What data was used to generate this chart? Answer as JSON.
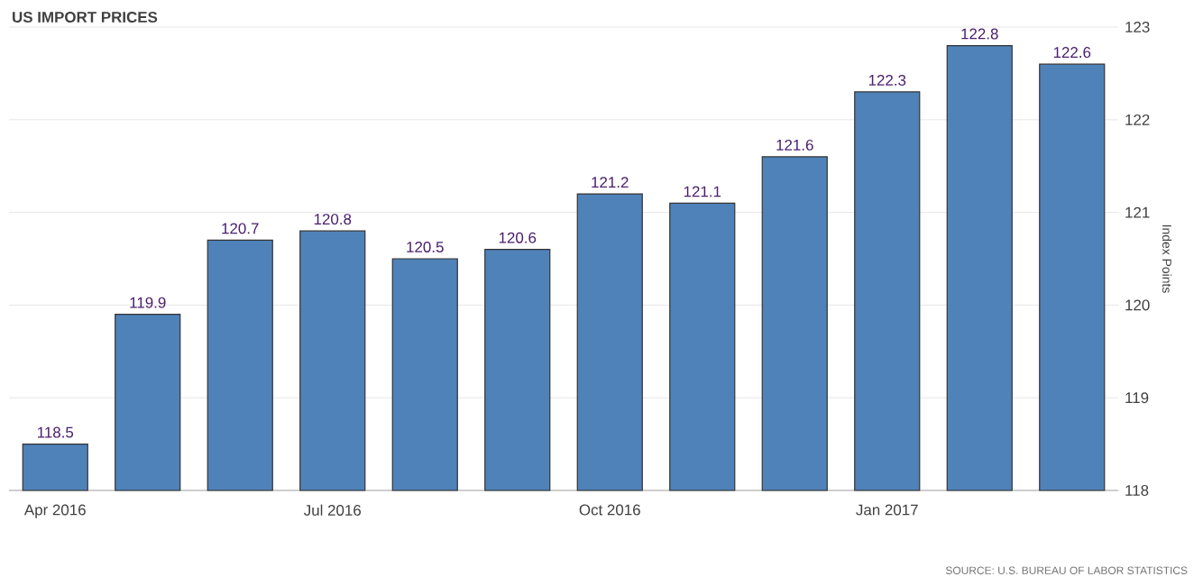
{
  "chart_data": {
    "type": "bar",
    "title": "US IMPORT PRICES",
    "ylabel": "Index Points",
    "categories": [
      "Apr 2016",
      null,
      null,
      "Jul 2016",
      null,
      null,
      "Oct 2016",
      null,
      null,
      "Jan 2017",
      null,
      null
    ],
    "values": [
      118.5,
      119.9,
      120.7,
      120.8,
      120.5,
      120.6,
      121.2,
      121.1,
      121.6,
      122.3,
      122.8,
      122.6
    ],
    "color": "#4f82b8",
    "ylim": [
      118,
      123
    ],
    "yticks": [
      118,
      119,
      120,
      121,
      122,
      123
    ],
    "grid": "y",
    "data_labels": true,
    "annotations": [
      "SOURCE: U.S. BUREAU OF LABOR STATISTICS"
    ]
  }
}
